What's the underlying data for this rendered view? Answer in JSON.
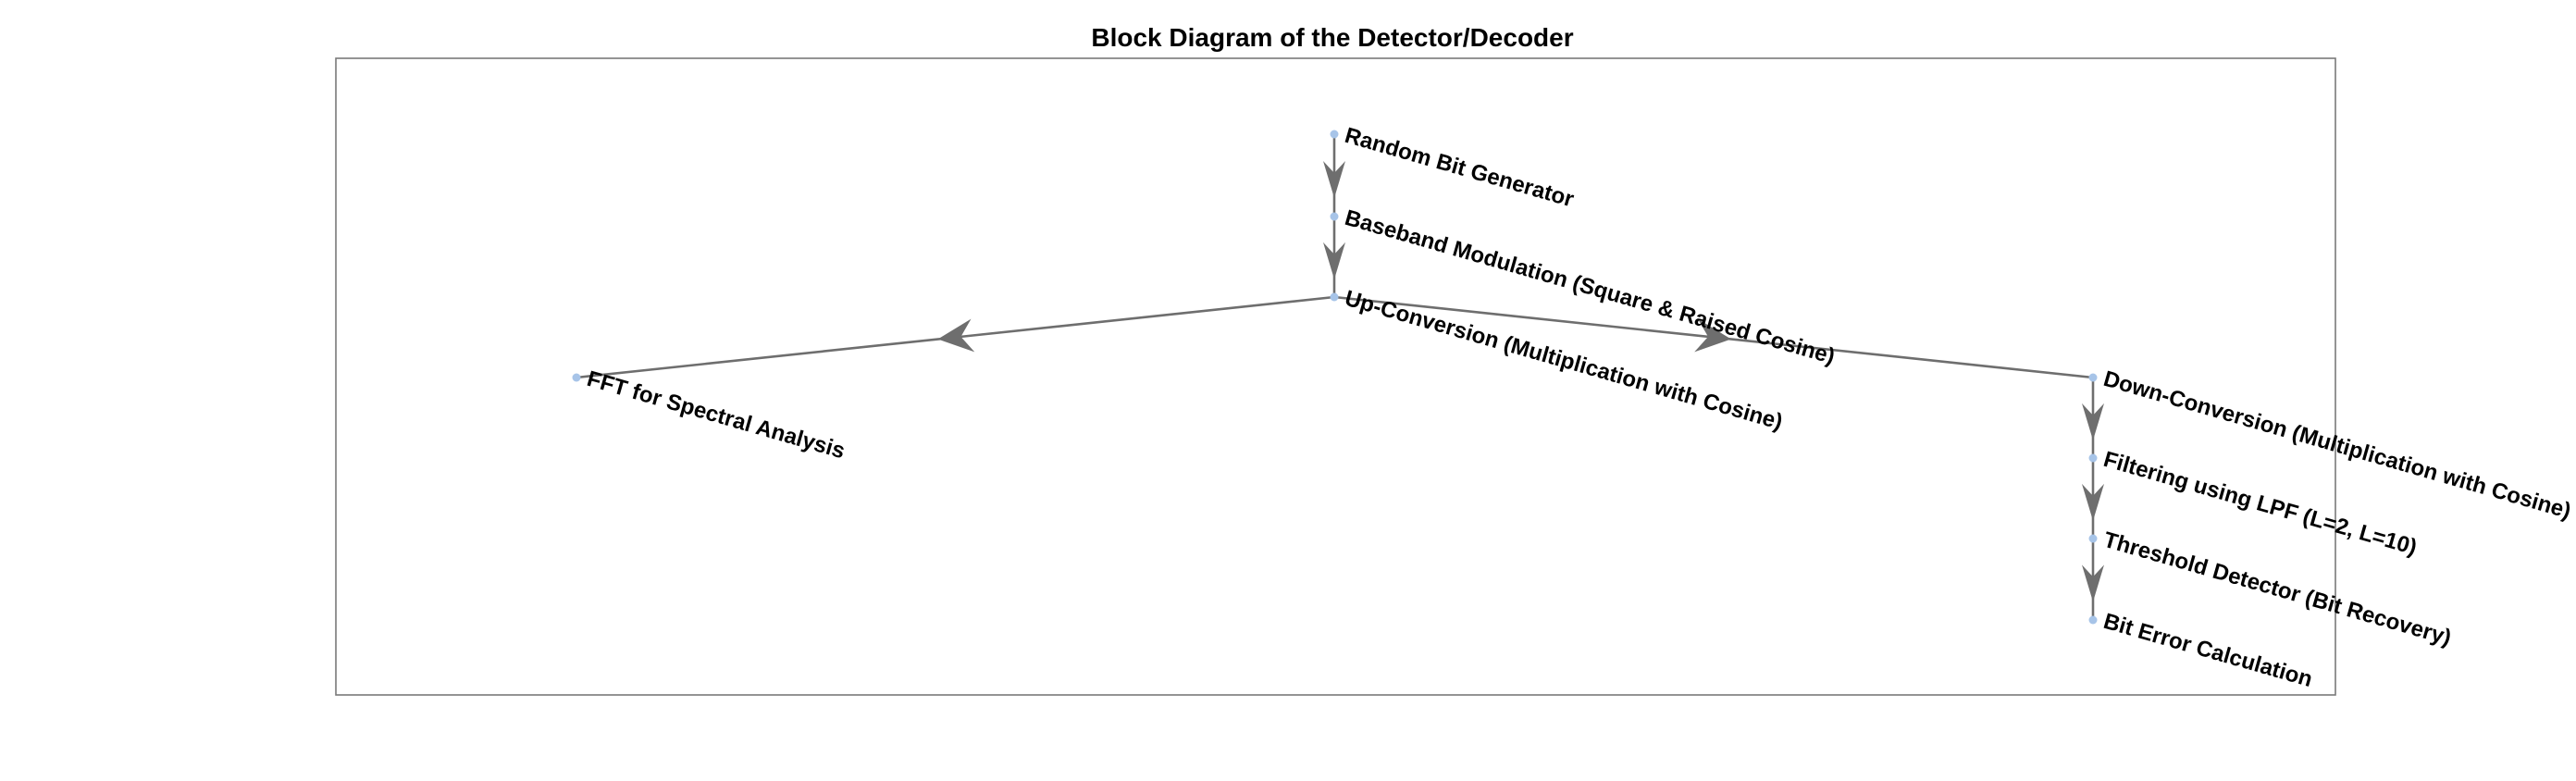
{
  "title": "Block Diagram of the Detector/Decoder",
  "colors": {
    "edge": "#6e6e6e",
    "node": "#a7c4e8",
    "axes": "#7a7a7a",
    "background": "#ffffff"
  },
  "nodes": [
    {
      "id": "random-bit-generator",
      "label": "Random Bit Generator"
    },
    {
      "id": "baseband-modulation",
      "label": "Baseband Modulation (Square & Raised Cosine)"
    },
    {
      "id": "up-conversion",
      "label": "Up-Conversion (Multiplication with Cosine)"
    },
    {
      "id": "fft",
      "label": "FFT for Spectral Analysis"
    },
    {
      "id": "down-conversion",
      "label": "Down-Conversion (Multiplication with Cosine)"
    },
    {
      "id": "filtering",
      "label": "Filtering using LPF (L=2, L=10)"
    },
    {
      "id": "threshold-detector",
      "label": "Threshold Detector (Bit Recovery)"
    },
    {
      "id": "bit-error",
      "label": "Bit Error Calculation"
    }
  ],
  "edges": [
    {
      "from": "random-bit-generator",
      "to": "baseband-modulation"
    },
    {
      "from": "baseband-modulation",
      "to": "up-conversion"
    },
    {
      "from": "up-conversion",
      "to": "fft"
    },
    {
      "from": "up-conversion",
      "to": "down-conversion"
    },
    {
      "from": "down-conversion",
      "to": "filtering"
    },
    {
      "from": "filtering",
      "to": "threshold-detector"
    },
    {
      "from": "threshold-detector",
      "to": "bit-error"
    }
  ]
}
